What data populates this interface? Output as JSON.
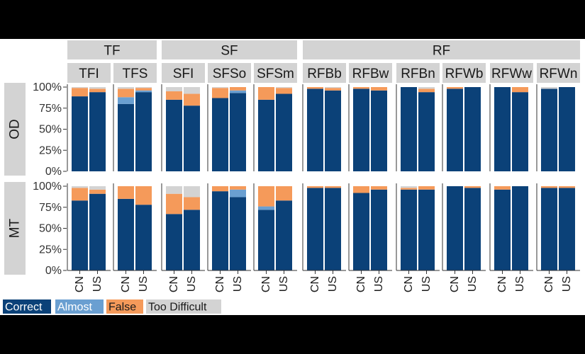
{
  "chart_data": {
    "type": "bar",
    "stacked": true,
    "groups": [
      {
        "name": "TF",
        "facets": [
          "TFI",
          "TFS"
        ]
      },
      {
        "name": "SF",
        "facets": [
          "SFI",
          "SFSo",
          "SFSm"
        ]
      },
      {
        "name": "RF",
        "facets": [
          "RFBb",
          "RFBw",
          "RFBn",
          "RFWb",
          "RFWw",
          "RFWn"
        ]
      }
    ],
    "rows": [
      "OD",
      "MT"
    ],
    "x_categories": [
      "CN",
      "US"
    ],
    "y_ticks": [
      "0%",
      "25%",
      "50%",
      "75%",
      "100%"
    ],
    "ylim": [
      0,
      1
    ],
    "series": [
      {
        "name": "Correct",
        "color": "#0b4178"
      },
      {
        "name": "Almost",
        "color": "#6a9fd1"
      },
      {
        "name": "False",
        "color": "#f59a5a"
      },
      {
        "name": "Too Difficult",
        "color": "#d3d3d3"
      }
    ],
    "legend": {
      "position": "bottom-left",
      "labels": [
        "Correct",
        "Almost",
        "False",
        "Too Difficult"
      ]
    },
    "values": {
      "OD": {
        "TFI": {
          "CN": [
            0.89,
            0.0,
            0.1,
            0.01
          ],
          "US": [
            0.94,
            0.0,
            0.04,
            0.02
          ]
        },
        "TFS": {
          "CN": [
            0.8,
            0.08,
            0.1,
            0.02
          ],
          "US": [
            0.94,
            0.02,
            0.03,
            0.01
          ]
        },
        "SFI": {
          "CN": [
            0.85,
            0.0,
            0.1,
            0.05
          ],
          "US": [
            0.78,
            0.0,
            0.14,
            0.08
          ]
        },
        "SFSo": {
          "CN": [
            0.87,
            0.0,
            0.12,
            0.01
          ],
          "US": [
            0.93,
            0.03,
            0.04,
            0.0
          ]
        },
        "SFSm": {
          "CN": [
            0.85,
            0.0,
            0.15,
            0.0
          ],
          "US": [
            0.92,
            0.0,
            0.07,
            0.01
          ]
        },
        "RFBb": {
          "CN": [
            0.98,
            0.0,
            0.02,
            0.0
          ],
          "US": [
            0.96,
            0.0,
            0.03,
            0.01
          ]
        },
        "RFBw": {
          "CN": [
            0.98,
            0.0,
            0.02,
            0.0
          ],
          "US": [
            0.96,
            0.0,
            0.04,
            0.0
          ]
        },
        "RFBn": {
          "CN": [
            1.0,
            0.0,
            0.0,
            0.0
          ],
          "US": [
            0.94,
            0.0,
            0.04,
            0.02
          ]
        },
        "RFWb": {
          "CN": [
            0.98,
            0.0,
            0.02,
            0.0
          ],
          "US": [
            1.0,
            0.0,
            0.0,
            0.0
          ]
        },
        "RFWw": {
          "CN": [
            1.0,
            0.0,
            0.0,
            0.0
          ],
          "US": [
            0.94,
            0.0,
            0.06,
            0.0
          ]
        },
        "RFWn": {
          "CN": [
            0.98,
            0.0,
            0.0,
            0.02
          ],
          "US": [
            1.0,
            0.0,
            0.0,
            0.0
          ]
        }
      },
      "MT": {
        "TFI": {
          "CN": [
            0.83,
            0.0,
            0.15,
            0.02
          ],
          "US": [
            0.91,
            0.0,
            0.05,
            0.04
          ]
        },
        "TFS": {
          "CN": [
            0.85,
            0.0,
            0.15,
            0.0
          ],
          "US": [
            0.78,
            0.0,
            0.22,
            0.0
          ]
        },
        "SFI": {
          "CN": [
            0.67,
            0.0,
            0.24,
            0.09
          ],
          "US": [
            0.72,
            0.0,
            0.15,
            0.13
          ]
        },
        "SFSo": {
          "CN": [
            0.94,
            0.0,
            0.06,
            0.0
          ],
          "US": [
            0.87,
            0.09,
            0.04,
            0.0
          ]
        },
        "SFSm": {
          "CN": [
            0.72,
            0.04,
            0.24,
            0.0
          ],
          "US": [
            0.83,
            0.0,
            0.17,
            0.0
          ]
        },
        "RFBb": {
          "CN": [
            0.98,
            0.0,
            0.02,
            0.0
          ],
          "US": [
            0.98,
            0.0,
            0.02,
            0.0
          ]
        },
        "RFBw": {
          "CN": [
            0.92,
            0.0,
            0.08,
            0.0
          ],
          "US": [
            0.96,
            0.0,
            0.04,
            0.0
          ]
        },
        "RFBn": {
          "CN": [
            0.96,
            0.0,
            0.02,
            0.02
          ],
          "US": [
            0.96,
            0.0,
            0.04,
            0.0
          ]
        },
        "RFWb": {
          "CN": [
            1.0,
            0.0,
            0.0,
            0.0
          ],
          "US": [
            0.98,
            0.0,
            0.02,
            0.0
          ]
        },
        "RFWw": {
          "CN": [
            0.96,
            0.0,
            0.04,
            0.0
          ],
          "US": [
            1.0,
            0.0,
            0.0,
            0.0
          ]
        },
        "RFWn": {
          "CN": [
            0.98,
            0.0,
            0.02,
            0.0
          ],
          "US": [
            0.98,
            0.0,
            0.02,
            0.0
          ]
        }
      }
    }
  }
}
